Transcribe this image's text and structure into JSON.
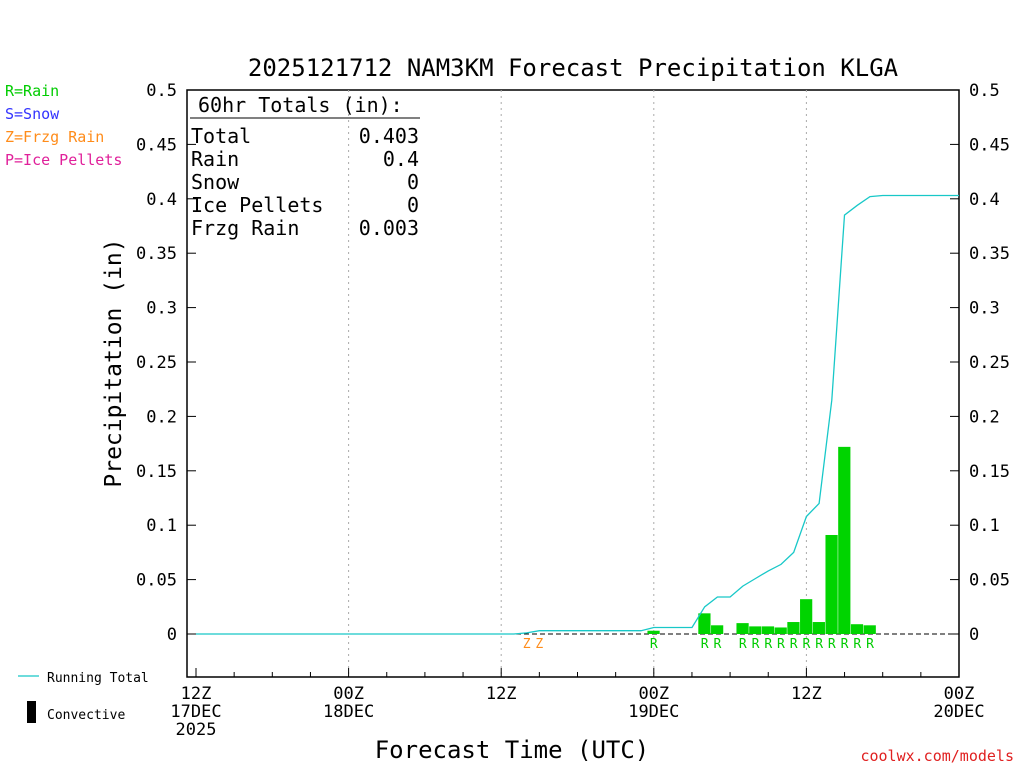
{
  "title": "2025121712 NAM3KM Forecast Precipitation KLGA",
  "legend_types": [
    {
      "text": "R=Rain",
      "color": "#00cc00"
    },
    {
      "text": "S=Snow",
      "color": "#3333ff"
    },
    {
      "text": "Z=Frzg Rain",
      "color": "#ff8c1a"
    },
    {
      "text": "P=Ice Pellets",
      "color": "#e0209a"
    }
  ],
  "totals": {
    "heading": "60hr Totals (in):",
    "rows": [
      {
        "label": "Total",
        "value": "0.403"
      },
      {
        "label": "Rain",
        "value": "0.4"
      },
      {
        "label": "Snow",
        "value": "0"
      },
      {
        "label": "Ice Pellets",
        "value": "0"
      },
      {
        "label": "Frzg Rain",
        "value": "0.003"
      }
    ]
  },
  "bottom_legend": {
    "running_total": "Running Total",
    "convective": "Convective"
  },
  "credit": "coolwx.com/models",
  "colors": {
    "bar": "#00d400",
    "line": "#18c8c8",
    "rain": "#00cc00",
    "frzg": "#ff8c1a",
    "credit": "#e02020"
  },
  "chart_data": {
    "type": "bar",
    "ylabel": "Precipitation (in)",
    "xlabel": "Forecast Time (UTC)",
    "xlim": [
      0,
      60
    ],
    "ylim": [
      -0.04,
      0.5
    ],
    "yticks": [
      0,
      0.05,
      0.1,
      0.15,
      0.2,
      0.25,
      0.3,
      0.35,
      0.4,
      0.45,
      0.5
    ],
    "ytick_labels": [
      "0",
      "0.05",
      "0.1",
      "0.15",
      "0.2",
      "0.25",
      "0.3",
      "0.35",
      "0.4",
      "0.45",
      "0.5"
    ],
    "xticks": [
      {
        "hour": 0,
        "lines": [
          "12Z",
          "17DEC",
          "2025"
        ]
      },
      {
        "hour": 12,
        "lines": [
          "00Z",
          "18DEC"
        ]
      },
      {
        "hour": 24,
        "lines": [
          "12Z"
        ]
      },
      {
        "hour": 36,
        "lines": [
          "00Z",
          "19DEC"
        ]
      },
      {
        "hour": 48,
        "lines": [
          "12Z"
        ]
      },
      {
        "hour": 60,
        "lines": [
          "00Z",
          "20DEC"
        ]
      }
    ],
    "grid_hours": [
      12,
      24,
      36,
      48
    ],
    "bars": [
      {
        "hour": 26,
        "value": 0.001,
        "type": "Z"
      },
      {
        "hour": 27,
        "value": 0.002,
        "type": "Z"
      },
      {
        "hour": 36,
        "value": 0.003,
        "type": "R"
      },
      {
        "hour": 40,
        "value": 0.019,
        "type": "R"
      },
      {
        "hour": 41,
        "value": 0.008,
        "type": "R"
      },
      {
        "hour": 43,
        "value": 0.01,
        "type": "R"
      },
      {
        "hour": 44,
        "value": 0.007,
        "type": "R"
      },
      {
        "hour": 45,
        "value": 0.007,
        "type": "R"
      },
      {
        "hour": 46,
        "value": 0.006,
        "type": "R"
      },
      {
        "hour": 47,
        "value": 0.011,
        "type": "R"
      },
      {
        "hour": 48,
        "value": 0.032,
        "type": "R"
      },
      {
        "hour": 49,
        "value": 0.011,
        "type": "R"
      },
      {
        "hour": 50,
        "value": 0.091,
        "type": "R"
      },
      {
        "hour": 51,
        "value": 0.172,
        "type": "R"
      },
      {
        "hour": 52,
        "value": 0.009,
        "type": "R"
      },
      {
        "hour": 53,
        "value": 0.008,
        "type": "R"
      }
    ],
    "running_total": [
      [
        0,
        0
      ],
      [
        25,
        0
      ],
      [
        26,
        0.001
      ],
      [
        27,
        0.003
      ],
      [
        28,
        0.003
      ],
      [
        35,
        0.003
      ],
      [
        36,
        0.006
      ],
      [
        39,
        0.006
      ],
      [
        40,
        0.025
      ],
      [
        41,
        0.034
      ],
      [
        42,
        0.034
      ],
      [
        43,
        0.044
      ],
      [
        44,
        0.051
      ],
      [
        45,
        0.058
      ],
      [
        46,
        0.064
      ],
      [
        47,
        0.075
      ],
      [
        48,
        0.108
      ],
      [
        49,
        0.12
      ],
      [
        50,
        0.215
      ],
      [
        51,
        0.385
      ],
      [
        52,
        0.394
      ],
      [
        53,
        0.402
      ],
      [
        54,
        0.403
      ],
      [
        60,
        0.403
      ]
    ]
  }
}
